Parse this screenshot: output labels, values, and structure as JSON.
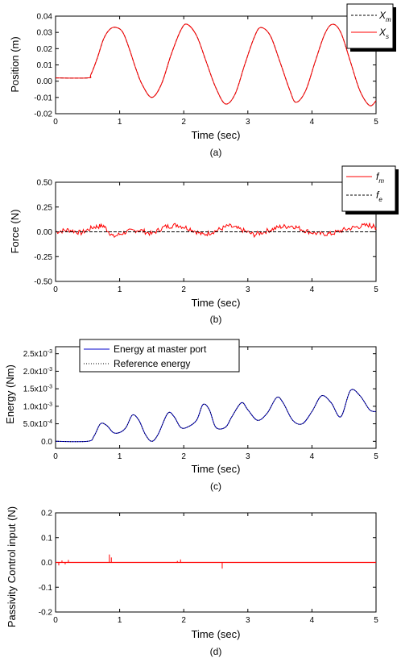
{
  "chart_data": [
    {
      "id": "a",
      "type": "line",
      "caption": "(a)",
      "xlabel": "Time (sec)",
      "ylabel": "Position (m)",
      "xlim": [
        0,
        5
      ],
      "ylim": [
        -0.02,
        0.04
      ],
      "xticks": [
        "0",
        "1",
        "2",
        "3",
        "4",
        "5"
      ],
      "yticks": [
        "-0.02",
        "-0.01",
        "0.00",
        "0.01",
        "0.02",
        "0.03",
        "0.04"
      ],
      "legend_position": "top-right",
      "grid": false,
      "series": [
        {
          "name": "X",
          "subscript": "m",
          "color": "#000000",
          "dash": "dashed",
          "x": [
            0,
            0.5,
            0.55,
            0.65,
            0.75,
            0.85,
            0.95,
            1.05,
            1.15,
            1.25,
            1.35,
            1.5,
            1.65,
            1.8,
            1.95,
            2.05,
            2.2,
            2.35,
            2.5,
            2.65,
            2.8,
            2.95,
            3.1,
            3.2,
            3.35,
            3.5,
            3.65,
            3.75,
            3.9,
            4.05,
            4.2,
            4.32,
            4.45,
            4.6,
            4.75,
            4.9,
            5.0
          ],
          "y": [
            0.002,
            0.002,
            0.004,
            0.014,
            0.026,
            0.032,
            0.033,
            0.03,
            0.02,
            0.008,
            -0.002,
            -0.01,
            -0.002,
            0.016,
            0.031,
            0.035,
            0.028,
            0.012,
            -0.004,
            -0.014,
            -0.008,
            0.01,
            0.027,
            0.033,
            0.028,
            0.012,
            -0.005,
            -0.013,
            -0.006,
            0.012,
            0.029,
            0.035,
            0.03,
            0.012,
            -0.006,
            -0.015,
            -0.012
          ]
        },
        {
          "name": "X",
          "subscript": "s",
          "color": "#ff0000",
          "dash": "solid",
          "x": [
            0,
            0.5,
            0.55,
            0.65,
            0.75,
            0.85,
            0.95,
            1.05,
            1.15,
            1.25,
            1.35,
            1.5,
            1.65,
            1.8,
            1.95,
            2.05,
            2.2,
            2.35,
            2.5,
            2.65,
            2.8,
            2.95,
            3.1,
            3.2,
            3.35,
            3.5,
            3.65,
            3.75,
            3.9,
            4.05,
            4.2,
            4.32,
            4.45,
            4.6,
            4.75,
            4.9,
            5.0
          ],
          "y": [
            0.002,
            0.002,
            0.004,
            0.014,
            0.026,
            0.032,
            0.033,
            0.03,
            0.02,
            0.008,
            -0.002,
            -0.01,
            -0.002,
            0.016,
            0.031,
            0.035,
            0.028,
            0.012,
            -0.004,
            -0.014,
            -0.008,
            0.01,
            0.027,
            0.033,
            0.028,
            0.012,
            -0.005,
            -0.013,
            -0.006,
            0.012,
            0.029,
            0.035,
            0.03,
            0.012,
            -0.006,
            -0.015,
            -0.012
          ]
        }
      ]
    },
    {
      "id": "b",
      "type": "line",
      "caption": "(b)",
      "xlabel": "Time (sec)",
      "ylabel": "Force (N)",
      "xlim": [
        0,
        5
      ],
      "ylim": [
        -0.5,
        0.5
      ],
      "xticks": [
        "0",
        "1",
        "2",
        "3",
        "4",
        "5"
      ],
      "yticks": [
        "-0.50",
        "-0.25",
        "0.00",
        "0.25",
        "0.50"
      ],
      "legend_position": "top-right",
      "grid": false,
      "series": [
        {
          "name": "f",
          "subscript": "m",
          "color": "#ff0000",
          "dash": "solid",
          "x": [
            0,
            0.2,
            0.4,
            0.6,
            0.75,
            0.9,
            1.1,
            1.3,
            1.5,
            1.7,
            1.9,
            2.1,
            2.3,
            2.5,
            2.7,
            2.9,
            3.1,
            3.3,
            3.5,
            3.7,
            3.9,
            4.1,
            4.3,
            4.5,
            4.7,
            4.9,
            5.0
          ],
          "y": [
            0.0,
            0.02,
            -0.01,
            0.05,
            0.06,
            -0.05,
            0.0,
            0.02,
            -0.02,
            0.05,
            0.07,
            0.03,
            -0.03,
            0.01,
            0.06,
            0.02,
            -0.03,
            0.01,
            0.05,
            0.06,
            0.01,
            -0.02,
            -0.02,
            0.02,
            0.05,
            0.07,
            0.04
          ]
        },
        {
          "name": "f",
          "subscript": "e",
          "color": "#000000",
          "dash": "dashed",
          "x": [
            0,
            5
          ],
          "y": [
            0,
            0
          ]
        }
      ]
    },
    {
      "id": "c",
      "type": "line",
      "caption": "(c)",
      "xlabel": "Time (sec)",
      "ylabel": "Energy (Nm)",
      "xlim": [
        0,
        5
      ],
      "ylim": [
        -0.0002,
        0.0027
      ],
      "xticks": [
        "0",
        "1",
        "2",
        "3",
        "4",
        "5"
      ],
      "yticks": [
        "0.0",
        "5.0x10-4",
        "1.0x10-3",
        "1.5x10-3",
        "2.0x10-3",
        "2.5x10-3"
      ],
      "legend_position": "top-left",
      "grid": false,
      "series": [
        {
          "name": "Energy at master port",
          "color": "#0000cc",
          "dash": "solid",
          "x": [
            0,
            0.5,
            0.6,
            0.7,
            0.8,
            0.9,
            1.0,
            1.1,
            1.2,
            1.3,
            1.4,
            1.5,
            1.6,
            1.75,
            1.85,
            1.95,
            2.05,
            2.2,
            2.3,
            2.4,
            2.5,
            2.65,
            2.75,
            2.9,
            3.0,
            3.15,
            3.3,
            3.45,
            3.55,
            3.7,
            3.85,
            4.0,
            4.15,
            4.3,
            4.45,
            4.6,
            4.75,
            4.9,
            5.0
          ],
          "y": [
            0.0,
            0.0,
            0.00015,
            0.0005,
            0.00045,
            0.00025,
            0.00025,
            0.0004,
            0.00075,
            0.0006,
            0.0002,
            0.0,
            0.0002,
            0.0008,
            0.0007,
            0.0004,
            0.0004,
            0.0006,
            0.00105,
            0.0009,
            0.0004,
            0.0004,
            0.0007,
            0.0011,
            0.0009,
            0.0006,
            0.0008,
            0.00125,
            0.0011,
            0.0006,
            0.0005,
            0.00085,
            0.0013,
            0.0011,
            0.0007,
            0.00145,
            0.0013,
            0.0009,
            0.00085
          ]
        },
        {
          "name": "Reference energy",
          "color": "#000000",
          "dash": "dotted",
          "x": [
            0,
            0.5,
            0.6,
            0.7,
            0.8,
            0.9,
            1.0,
            1.1,
            1.2,
            1.3,
            1.4,
            1.5,
            1.6,
            1.75,
            1.85,
            1.95,
            2.05,
            2.2,
            2.3,
            2.4,
            2.5,
            2.65,
            2.75,
            2.9,
            3.0,
            3.15,
            3.3,
            3.45,
            3.55,
            3.7,
            3.85,
            4.0,
            4.15,
            4.3,
            4.45,
            4.6,
            4.75,
            4.9,
            5.0
          ],
          "y": [
            0.0,
            0.0,
            0.00015,
            0.0005,
            0.00045,
            0.00025,
            0.00025,
            0.0004,
            0.00075,
            0.0006,
            0.0002,
            0.0,
            0.0002,
            0.0008,
            0.0007,
            0.0004,
            0.0004,
            0.0006,
            0.00105,
            0.0009,
            0.0004,
            0.0004,
            0.0007,
            0.0011,
            0.0009,
            0.0006,
            0.0008,
            0.00125,
            0.0011,
            0.0006,
            0.0005,
            0.00085,
            0.0013,
            0.0011,
            0.0007,
            0.00145,
            0.0013,
            0.0009,
            0.00085
          ]
        }
      ]
    },
    {
      "id": "d",
      "type": "line",
      "caption": "(d)",
      "xlabel": "Time (sec)",
      "ylabel": "Passivity Control input (N)",
      "xlim": [
        0,
        5
      ],
      "ylim": [
        -0.2,
        0.2
      ],
      "xticks": [
        "0",
        "1",
        "2",
        "3",
        "4",
        "5"
      ],
      "yticks": [
        "-0.2",
        "-0.1",
        "0.0",
        "0.1",
        "0.2"
      ],
      "grid": false,
      "series": [
        {
          "color": "#ff0000",
          "dash": "solid",
          "spikes": [
            {
              "x": 0.05,
              "y": -0.012
            },
            {
              "x": 0.1,
              "y": 0.008
            },
            {
              "x": 0.15,
              "y": -0.008
            },
            {
              "x": 0.2,
              "y": 0.01
            },
            {
              "x": 0.84,
              "y": 0.032
            },
            {
              "x": 0.87,
              "y": 0.02
            },
            {
              "x": 1.9,
              "y": 0.006
            },
            {
              "x": 1.95,
              "y": 0.012
            },
            {
              "x": 2.6,
              "y": -0.025
            }
          ]
        }
      ]
    }
  ]
}
